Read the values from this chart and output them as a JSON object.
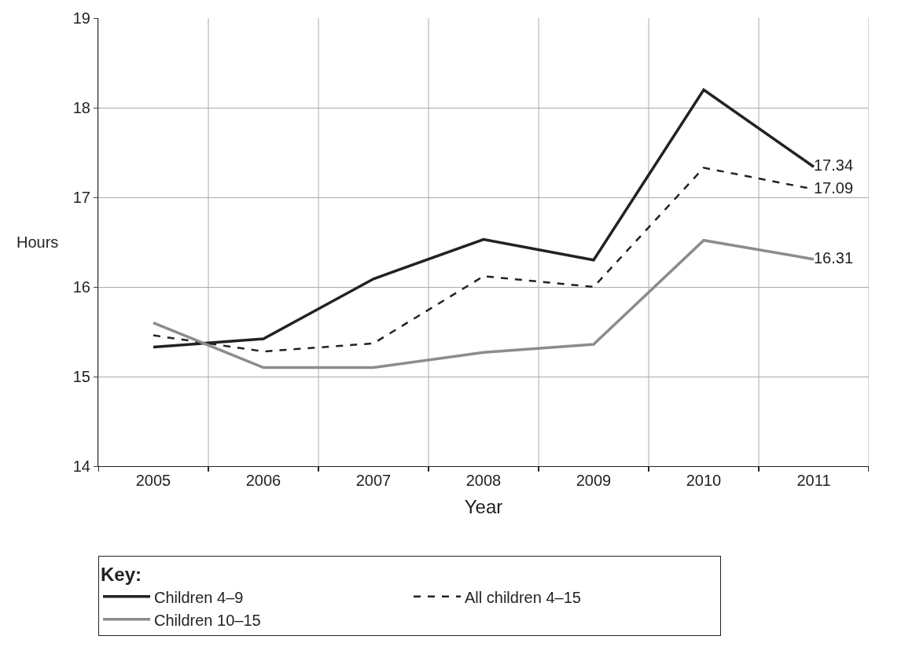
{
  "chart_data": {
    "type": "line",
    "xlabel": "Year",
    "ylabel": "Hours",
    "legend_title": "Key:",
    "categories": [
      "2005",
      "2006",
      "2007",
      "2008",
      "2009",
      "2010",
      "2011"
    ],
    "series": [
      {
        "name": "Children 4–9",
        "color": "#222222",
        "line_style": "solid",
        "values": [
          15.33,
          15.42,
          16.09,
          16.53,
          16.3,
          18.2,
          17.34
        ],
        "value_labels": [
          null,
          null,
          null,
          null,
          null,
          null,
          "17.34"
        ]
      },
      {
        "name": "All children 4–15",
        "color": "#222222",
        "line_style": "dashed",
        "values": [
          15.46,
          15.28,
          15.37,
          16.12,
          16.0,
          17.33,
          17.09
        ],
        "value_labels": [
          null,
          null,
          null,
          null,
          null,
          null,
          "17.09"
        ]
      },
      {
        "name": "Children 10–15",
        "color": "#8c8c8c",
        "line_style": "solid",
        "values": [
          15.6,
          15.1,
          15.1,
          15.27,
          15.36,
          16.52,
          16.31
        ],
        "value_labels": [
          null,
          null,
          null,
          null,
          null,
          null,
          "16.31"
        ]
      }
    ],
    "ylim": [
      14,
      19
    ],
    "yticks": [
      14,
      15,
      16,
      17,
      18,
      19
    ],
    "grid": true,
    "legend": "bottom",
    "marker": "none"
  }
}
